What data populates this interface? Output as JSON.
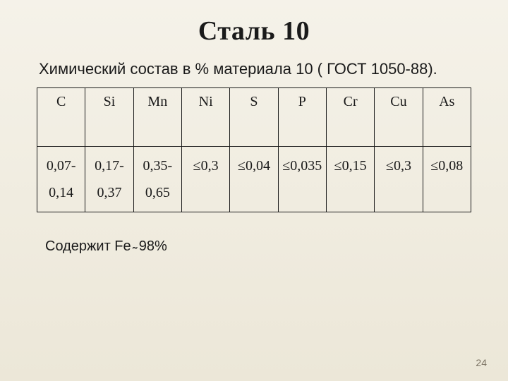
{
  "title": "Сталь 10",
  "subtitle": "Химический состав в % материала 10 ( ГОСТ 1050-88).",
  "table": {
    "columns": [
      "C",
      "Si",
      "Mn",
      "Ni",
      "S",
      "P",
      "Cr",
      "Cu",
      "As"
    ],
    "rows": [
      [
        "0,07-0,14",
        "0,17-0,37",
        "0,35-0,65",
        "≤0,3",
        "≤0,04",
        "≤0,035",
        "≤0,15",
        "≤0,3",
        "≤0,08"
      ]
    ],
    "border_color": "#1a1a1a",
    "header_fontsize": 20,
    "cell_fontsize": 20
  },
  "footer_note": "Содержит Fe ̴ 98%",
  "page_number": "24",
  "background_gradient": [
    "#f5f2e9",
    "#ece7d8"
  ],
  "text_color": "#1a1a1a"
}
